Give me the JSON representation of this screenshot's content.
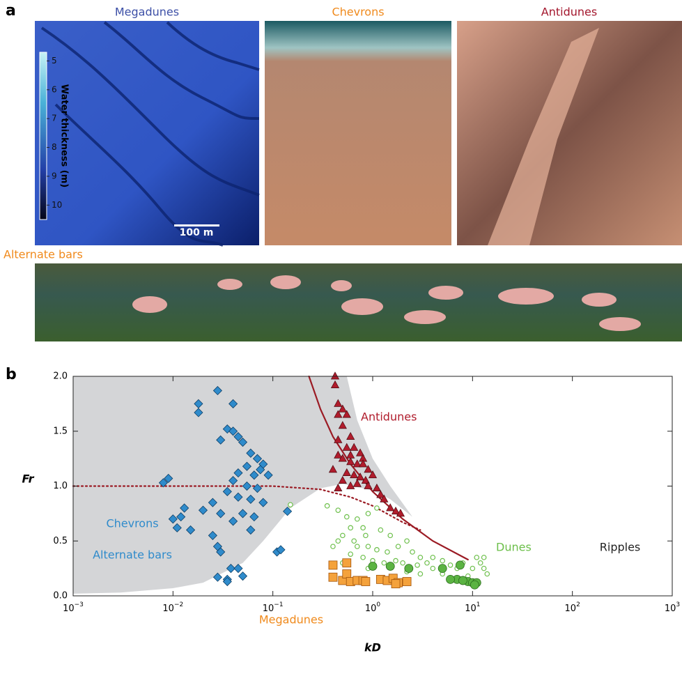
{
  "panel_a": {
    "letter": "a",
    "photo_titles": [
      "Megadunes",
      "Chevrons",
      "Antidunes"
    ],
    "strip_title": "Alternate bars",
    "colorbar": {
      "label": "Water thickness (m)",
      "lim": [
        4.7,
        10.5
      ],
      "ticks": [
        5,
        6,
        7,
        8,
        9,
        10
      ]
    },
    "scale_bar": "100 m"
  },
  "chart_data": {
    "type": "scatter",
    "panel_letter": "b",
    "xlabel": "kD",
    "ylabel": "Fr",
    "xscale": "log",
    "xlim": [
      0.001,
      1000
    ],
    "ylim": [
      0,
      2
    ],
    "xticks": [
      {
        "value": 0.001,
        "label": "10",
        "exponent": "−3"
      },
      {
        "value": 0.01,
        "label": "10",
        "exponent": "−2"
      },
      {
        "value": 0.1,
        "label": "10",
        "exponent": "−1"
      },
      {
        "value": 1,
        "label": "10",
        "exponent": "0"
      },
      {
        "value": 10,
        "label": "10",
        "exponent": "1"
      },
      {
        "value": 100,
        "label": "10",
        "exponent": "2"
      },
      {
        "value": 1000,
        "label": "10",
        "exponent": "3"
      }
    ],
    "yticks": [
      {
        "value": 0,
        "label": "0.0"
      },
      {
        "value": 0.5,
        "label": "0.5"
      },
      {
        "value": 1,
        "label": "1.0"
      },
      {
        "value": 1.5,
        "label": "1.5"
      },
      {
        "value": 2,
        "label": "2.0"
      }
    ],
    "shaded_region": {
      "color": "#d4d5d7",
      "x": [
        0.001,
        0.55,
        0.7,
        1,
        1.5,
        2.5,
        1.5,
        1,
        0.5,
        0.3,
        0.15,
        0.08,
        0.05,
        0.02,
        0.01,
        0.003,
        0.001
      ],
      "y": [
        2,
        2,
        1.6,
        1.25,
        1,
        0.72,
        0.88,
        0.96,
        1.02,
        0.98,
        0.8,
        0.5,
        0.3,
        0.12,
        0.07,
        0.03,
        0.02
      ]
    },
    "lines": [
      {
        "color": "#9b1b24",
        "style": "solid",
        "x": [
          0.23,
          0.3,
          0.4,
          0.6,
          1,
          2,
          4,
          9
        ],
        "y": [
          2,
          1.7,
          1.45,
          1.2,
          0.95,
          0.7,
          0.5,
          0.33
        ]
      },
      {
        "color": "#9b1b24",
        "style": "dotted",
        "x": [
          0.001,
          0.1,
          0.3,
          0.6,
          1,
          2,
          3
        ],
        "y": [
          1,
          1,
          0.97,
          0.9,
          0.82,
          0.67,
          0.6
        ]
      }
    ],
    "series": [
      {
        "marker": "diamond",
        "color": "#2f8bcb",
        "x": [
          0.028,
          0.018,
          0.018,
          0.04,
          0.035,
          0.04,
          0.045,
          0.03,
          0.05,
          0.06,
          0.07,
          0.08,
          0.055,
          0.045,
          0.065,
          0.09,
          0.04,
          0.055,
          0.07,
          0.035,
          0.045,
          0.06,
          0.08,
          0.025,
          0.02,
          0.03,
          0.05,
          0.065,
          0.012,
          0.01,
          0.011,
          0.015,
          0.008,
          0.009,
          0.013,
          0.025,
          0.028,
          0.03,
          0.038,
          0.035,
          0.035,
          0.028,
          0.045,
          0.05,
          0.11,
          0.14,
          0.12,
          0.04,
          0.06,
          0.075
        ],
        "y": [
          1.87,
          1.75,
          1.67,
          1.75,
          1.52,
          1.5,
          1.45,
          1.42,
          1.4,
          1.3,
          1.25,
          1.2,
          1.18,
          1.12,
          1.1,
          1.1,
          1.05,
          1,
          0.98,
          0.95,
          0.9,
          0.88,
          0.85,
          0.85,
          0.78,
          0.75,
          0.75,
          0.72,
          0.72,
          0.7,
          0.62,
          0.6,
          1.03,
          1.07,
          0.8,
          0.55,
          0.45,
          0.4,
          0.25,
          0.15,
          0.13,
          0.17,
          0.25,
          0.18,
          0.4,
          0.77,
          0.42,
          0.68,
          0.6,
          1.15
        ]
      },
      {
        "marker": "triangle",
        "color": "#b01c2c",
        "x": [
          0.42,
          0.42,
          0.45,
          0.5,
          0.45,
          0.55,
          0.5,
          0.6,
          0.45,
          0.55,
          0.65,
          0.75,
          0.45,
          0.5,
          0.6,
          0.7,
          0.8,
          0.9,
          0.4,
          0.55,
          0.65,
          0.75,
          0.85,
          1,
          0.5,
          0.6,
          0.7,
          0.9,
          1.1,
          0.45,
          1.2,
          1.3,
          1.5,
          1.7,
          1.9,
          0.8,
          0.6
        ],
        "y": [
          2,
          1.92,
          1.75,
          1.7,
          1.65,
          1.65,
          1.55,
          1.45,
          1.42,
          1.35,
          1.35,
          1.3,
          1.28,
          1.25,
          1.22,
          1.2,
          1.25,
          1.15,
          1.15,
          1.12,
          1.1,
          1.08,
          1.05,
          1.1,
          1.05,
          1,
          1.02,
          1,
          0.98,
          0.98,
          0.92,
          0.88,
          0.8,
          0.77,
          0.75,
          1.2,
          1.28
        ]
      },
      {
        "marker": "open-circle",
        "color": "#6cbf4a",
        "x": [
          0.15,
          0.35,
          0.45,
          0.55,
          0.7,
          0.9,
          1.1,
          0.8,
          0.6,
          0.5,
          0.45,
          0.65,
          0.85,
          1.2,
          1.5,
          0.7,
          0.9,
          1.1,
          1.4,
          1.8,
          2.2,
          2.5,
          3,
          0.6,
          0.8,
          1,
          1.3,
          1.7,
          2,
          2.8,
          3.5,
          4,
          5,
          6,
          7,
          8,
          10,
          12,
          13,
          14,
          11,
          5,
          4,
          3,
          0.4,
          0.5,
          2.2,
          9,
          13,
          0.9
        ],
        "y": [
          0.83,
          0.82,
          0.78,
          0.72,
          0.7,
          0.75,
          0.8,
          0.62,
          0.62,
          0.55,
          0.5,
          0.5,
          0.55,
          0.6,
          0.55,
          0.45,
          0.45,
          0.42,
          0.4,
          0.45,
          0.5,
          0.4,
          0.35,
          0.38,
          0.35,
          0.32,
          0.3,
          0.32,
          0.3,
          0.28,
          0.3,
          0.35,
          0.32,
          0.28,
          0.25,
          0.3,
          0.25,
          0.3,
          0.25,
          0.2,
          0.35,
          0.2,
          0.25,
          0.2,
          0.45,
          0.3,
          0.22,
          0.18,
          0.35,
          0.25
        ]
      },
      {
        "marker": "circle",
        "color": "#5bb342",
        "x": [
          1,
          1.5,
          2.3,
          5,
          7.5,
          7,
          9,
          10,
          11,
          10.5,
          6,
          8
        ],
        "y": [
          0.27,
          0.27,
          0.25,
          0.25,
          0.28,
          0.15,
          0.13,
          0.12,
          0.12,
          0.1,
          0.15,
          0.14
        ]
      },
      {
        "marker": "square",
        "color": "#f4a23c",
        "x": [
          0.4,
          0.55,
          0.4,
          0.5,
          0.55,
          0.6,
          0.7,
          0.8,
          0.85,
          1.2,
          1.4,
          1.6,
          1.8,
          2.2,
          1.7
        ],
        "y": [
          0.28,
          0.3,
          0.17,
          0.14,
          0.2,
          0.13,
          0.14,
          0.14,
          0.13,
          0.15,
          0.14,
          0.16,
          0.12,
          0.13,
          0.11
        ]
      }
    ],
    "annotations": [
      {
        "text": "Antidunes",
        "color": "#b01c2c"
      },
      {
        "text": "Chevrons",
        "color": "#2f8bcb"
      },
      {
        "text": "Alternate bars",
        "color": "#2f8bcb"
      },
      {
        "text": "Dunes",
        "color": "#6cbf4a"
      },
      {
        "text": "Megadunes",
        "color": "#f08a1c"
      },
      {
        "text": "Ripples",
        "color": "#222"
      }
    ]
  }
}
